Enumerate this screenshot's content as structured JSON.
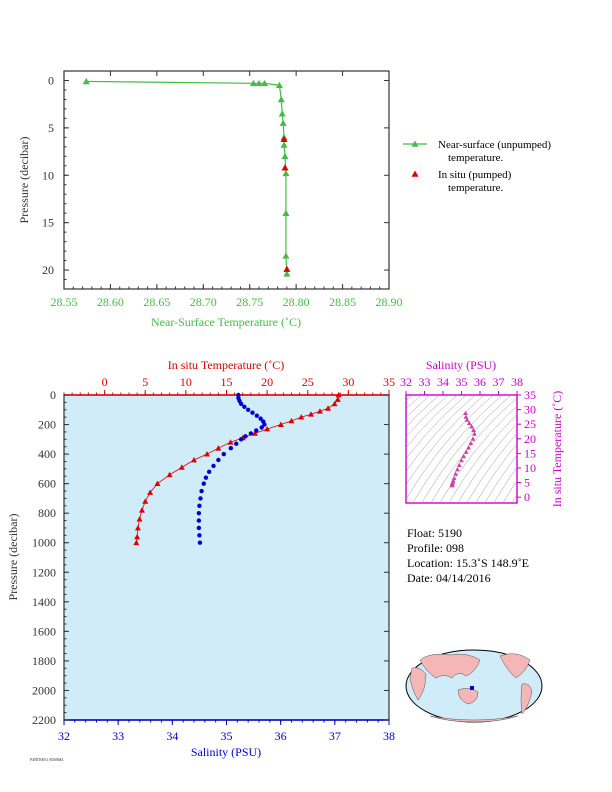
{
  "chart_data": [
    {
      "type": "line",
      "xlabel": "Near-Surface Temperature (˚C)",
      "ylabel": "Pressure (decibar)",
      "xlim": [
        28.55,
        28.9
      ],
      "ylim": [
        22,
        -1
      ],
      "x_ticks": [
        "28.55",
        "28.60",
        "28.65",
        "28.70",
        "28.75",
        "28.80",
        "28.85",
        "28.90"
      ],
      "y_ticks": [
        "0",
        "5",
        "10",
        "15",
        "20"
      ],
      "series": [
        {
          "name": "Near-surface (unpumped) temperature.",
          "color": "#44bb44",
          "points": [
            {
              "t": 28.574,
              "p": 0.1
            },
            {
              "t": 28.754,
              "p": 0.3
            },
            {
              "t": 28.76,
              "p": 0.3
            },
            {
              "t": 28.766,
              "p": 0.3
            },
            {
              "t": 28.782,
              "p": 0.5
            },
            {
              "t": 28.784,
              "p": 2.0
            },
            {
              "t": 28.785,
              "p": 3.5
            },
            {
              "t": 28.786,
              "p": 4.5
            },
            {
              "t": 28.787,
              "p": 6.0
            },
            {
              "t": 28.787,
              "p": 6.8
            },
            {
              "t": 28.788,
              "p": 8.0
            },
            {
              "t": 28.789,
              "p": 9.8
            },
            {
              "t": 28.789,
              "p": 14.0
            },
            {
              "t": 28.789,
              "p": 18.5
            },
            {
              "t": 28.79,
              "p": 20.4
            }
          ]
        },
        {
          "name": "In situ (pumped) temperature.",
          "color": "#dd0000",
          "points": [
            {
              "t": 28.787,
              "p": 6.2
            },
            {
              "t": 28.788,
              "p": 9.2
            },
            {
              "t": 28.79,
              "p": 19.9
            }
          ]
        }
      ],
      "legend": "right"
    },
    {
      "type": "scatter",
      "top_xlabel": "In situ Temperature (˚C)",
      "bottom_xlabel": "Salinity (PSU)",
      "ylabel": "Pressure (decibar)",
      "temp_lim": [
        -5,
        35
      ],
      "sal_lim": [
        32,
        38
      ],
      "ylim": [
        2200,
        0
      ],
      "temp_ticks": [
        "0",
        "5",
        "10",
        "15",
        "20",
        "25",
        "30",
        "35"
      ],
      "sal_ticks": [
        "32",
        "33",
        "34",
        "35",
        "36",
        "37",
        "38"
      ],
      "p_ticks": [
        "0",
        "200",
        "400",
        "600",
        "800",
        "1000",
        "1200",
        "1400",
        "1600",
        "1800",
        "2000",
        "2200"
      ],
      "temperature_profile": [
        {
          "p": 0,
          "t": 28.8
        },
        {
          "p": 30,
          "t": 28.7
        },
        {
          "p": 60,
          "t": 28.3
        },
        {
          "p": 90,
          "t": 27.5
        },
        {
          "p": 110,
          "t": 26.5
        },
        {
          "p": 130,
          "t": 25.4
        },
        {
          "p": 150,
          "t": 24.2
        },
        {
          "p": 175,
          "t": 23.0
        },
        {
          "p": 200,
          "t": 21.7
        },
        {
          "p": 230,
          "t": 20.0
        },
        {
          "p": 260,
          "t": 18.5
        },
        {
          "p": 290,
          "t": 17.0
        },
        {
          "p": 320,
          "t": 15.5
        },
        {
          "p": 360,
          "t": 14.0
        },
        {
          "p": 400,
          "t": 12.6
        },
        {
          "p": 440,
          "t": 11.0
        },
        {
          "p": 490,
          "t": 9.5
        },
        {
          "p": 540,
          "t": 8.0
        },
        {
          "p": 600,
          "t": 6.5
        },
        {
          "p": 660,
          "t": 5.6
        },
        {
          "p": 720,
          "t": 5.0
        },
        {
          "p": 780,
          "t": 4.6
        },
        {
          "p": 840,
          "t": 4.3
        },
        {
          "p": 900,
          "t": 4.1
        },
        {
          "p": 960,
          "t": 4.0
        },
        {
          "p": 1000,
          "t": 3.9
        }
      ],
      "salinity_profile": [
        {
          "p": 0,
          "s": 35.22
        },
        {
          "p": 20,
          "s": 35.22
        },
        {
          "p": 40,
          "s": 35.24
        },
        {
          "p": 60,
          "s": 35.27
        },
        {
          "p": 80,
          "s": 35.33
        },
        {
          "p": 100,
          "s": 35.4
        },
        {
          "p": 120,
          "s": 35.48
        },
        {
          "p": 140,
          "s": 35.56
        },
        {
          "p": 160,
          "s": 35.63
        },
        {
          "p": 180,
          "s": 35.68
        },
        {
          "p": 200,
          "s": 35.7
        },
        {
          "p": 220,
          "s": 35.65
        },
        {
          "p": 240,
          "s": 35.55
        },
        {
          "p": 260,
          "s": 35.45
        },
        {
          "p": 280,
          "s": 35.35
        },
        {
          "p": 300,
          "s": 35.27
        },
        {
          "p": 330,
          "s": 35.18
        },
        {
          "p": 360,
          "s": 35.08
        },
        {
          "p": 400,
          "s": 34.95
        },
        {
          "p": 440,
          "s": 34.85
        },
        {
          "p": 480,
          "s": 34.76
        },
        {
          "p": 520,
          "s": 34.68
        },
        {
          "p": 560,
          "s": 34.62
        },
        {
          "p": 600,
          "s": 34.58
        },
        {
          "p": 650,
          "s": 34.54
        },
        {
          "p": 700,
          "s": 34.52
        },
        {
          "p": 750,
          "s": 34.5
        },
        {
          "p": 800,
          "s": 34.49
        },
        {
          "p": 850,
          "s": 34.49
        },
        {
          "p": 900,
          "s": 34.49
        },
        {
          "p": 950,
          "s": 34.5
        },
        {
          "p": 1000,
          "s": 34.51
        }
      ],
      "temp_color": "#dd0000",
      "sal_color": "#0000cc",
      "background": "#d0ecf8"
    },
    {
      "type": "scatter",
      "top_xlabel": "Salinity (PSU)",
      "ylabel": "In situ Temperature (˚C)",
      "sal_lim": [
        32,
        38
      ],
      "temp_lim": [
        -2,
        35
      ],
      "sal_ticks": [
        "32",
        "33",
        "34",
        "35",
        "36",
        "37",
        "38"
      ],
      "temp_ticks": [
        "0",
        "5",
        "10",
        "15",
        "20",
        "25",
        "30",
        "35"
      ],
      "points": [
        {
          "s": 35.22,
          "t": 28.8
        },
        {
          "s": 35.24,
          "t": 27.5
        },
        {
          "s": 35.3,
          "t": 26.5
        },
        {
          "s": 35.42,
          "t": 25.4
        },
        {
          "s": 35.55,
          "t": 24.2
        },
        {
          "s": 35.65,
          "t": 23.0
        },
        {
          "s": 35.7,
          "t": 21.7
        },
        {
          "s": 35.62,
          "t": 20.0
        },
        {
          "s": 35.5,
          "t": 18.5
        },
        {
          "s": 35.38,
          "t": 17.0
        },
        {
          "s": 35.25,
          "t": 15.5
        },
        {
          "s": 35.12,
          "t": 14.0
        },
        {
          "s": 35.0,
          "t": 12.6
        },
        {
          "s": 34.88,
          "t": 11.0
        },
        {
          "s": 34.78,
          "t": 9.5
        },
        {
          "s": 34.68,
          "t": 8.0
        },
        {
          "s": 34.6,
          "t": 6.5
        },
        {
          "s": 34.55,
          "t": 5.6
        },
        {
          "s": 34.52,
          "t": 5.0
        },
        {
          "s": 34.5,
          "t": 4.6
        },
        {
          "s": 34.49,
          "t": 4.3
        },
        {
          "s": 34.5,
          "t": 4.0
        }
      ],
      "color": "#cc44aa",
      "axis_color": "#cc00cc"
    }
  ],
  "float_info": {
    "float": "Float:  5190",
    "profile": "Profile:  098",
    "location": "Location:  15.3˚S  148.9˚E",
    "date": "Date:  04/14/2016"
  },
  "footer_text": "P4RTRE61 B560M4"
}
